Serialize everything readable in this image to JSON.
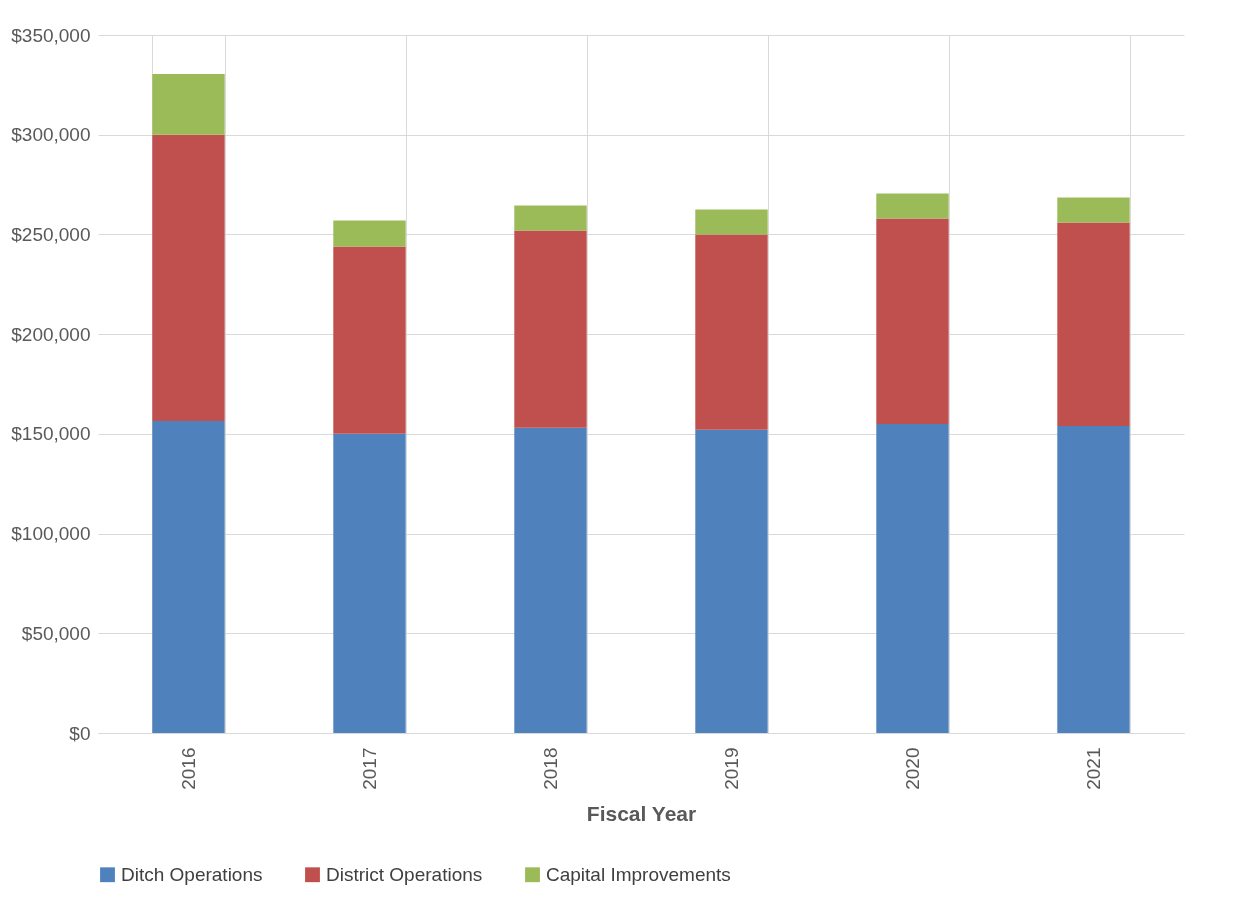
{
  "chart_data": {
    "type": "bar",
    "stacked": true,
    "xlabel": "Fiscal Year",
    "categories": [
      "2016",
      "2017",
      "2018",
      "2019",
      "2020",
      "2021"
    ],
    "series": [
      {
        "name": "Ditch Operations",
        "color": "#4f81bd",
        "values": [
          156500,
          150000,
          153000,
          152000,
          155000,
          154000
        ]
      },
      {
        "name": "District Operations",
        "color": "#c0504d",
        "values": [
          143500,
          94000,
          99000,
          98000,
          103000,
          102000
        ]
      },
      {
        "name": "Capital Improvements",
        "color": "#9bbb59",
        "values": [
          30500,
          13000,
          12500,
          12500,
          12500,
          12500
        ]
      }
    ],
    "ylim": [
      0,
      350000
    ],
    "yticks": [
      {
        "value": 0,
        "label": "$0"
      },
      {
        "value": 50000,
        "label": "$50,000"
      },
      {
        "value": 100000,
        "label": "$100,000"
      },
      {
        "value": 150000,
        "label": "$150,000"
      },
      {
        "value": 200000,
        "label": "$200,000"
      },
      {
        "value": 250000,
        "label": "$250,000"
      },
      {
        "value": 300000,
        "label": "$300,000"
      },
      {
        "value": 350000,
        "label": "$350,000"
      }
    ],
    "grid": true,
    "legend": "bottom"
  }
}
